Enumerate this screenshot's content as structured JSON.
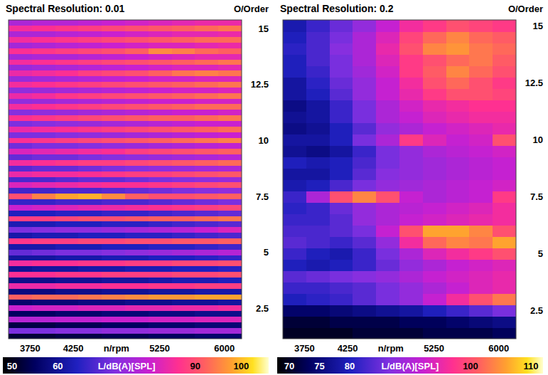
{
  "chart_data": [
    {
      "type": "heatmap",
      "title": "Spectral Resolution: 0.01",
      "y_label": "O/Order",
      "x_label": "n/rpm",
      "x": [
        3635,
        3905,
        4175,
        4445,
        4715,
        4985,
        5255,
        5525,
        5795,
        6065
      ],
      "y": [
        1.25,
        1.5,
        1.75,
        2.0,
        2.25,
        2.5,
        2.75,
        3.0,
        3.25,
        3.5,
        3.75,
        4.0,
        4.25,
        4.5,
        4.75,
        5.0,
        5.25,
        5.5,
        5.75,
        6.0,
        6.25,
        6.5,
        6.75,
        7.0,
        7.25,
        7.5,
        7.75,
        8.0,
        8.25,
        8.5,
        8.75,
        9.0,
        9.25,
        9.5,
        9.75,
        10.0,
        10.25,
        10.5,
        10.75,
        11.0,
        11.25,
        11.5,
        11.75,
        12.0,
        12.25,
        12.5,
        12.75,
        13.0,
        13.25,
        13.5,
        13.75,
        14.0,
        14.25,
        14.5,
        14.75,
        15.0,
        15.25
      ],
      "values": [
        [
          52,
          52,
          53,
          53,
          54,
          54,
          55,
          55,
          56,
          56
        ],
        [
          72,
          72,
          73,
          73,
          74,
          74,
          75,
          75,
          76,
          76
        ],
        [
          53,
          53,
          54,
          54,
          55,
          55,
          56,
          56,
          57,
          57
        ],
        [
          78,
          78,
          79,
          79,
          80,
          80,
          81,
          81,
          82,
          82
        ],
        [
          55,
          55,
          56,
          56,
          57,
          57,
          58,
          58,
          59,
          59
        ],
        [
          80,
          81,
          81,
          82,
          82,
          83,
          83,
          84,
          84,
          85
        ],
        [
          56,
          57,
          57,
          58,
          58,
          59,
          59,
          60,
          60,
          61
        ],
        [
          92,
          93,
          93,
          94,
          95,
          96,
          97,
          97,
          98,
          98
        ],
        [
          58,
          58,
          59,
          59,
          60,
          60,
          61,
          61,
          62,
          62
        ],
        [
          84,
          84,
          85,
          85,
          86,
          86,
          87,
          87,
          88,
          88
        ],
        [
          59,
          59,
          60,
          60,
          61,
          61,
          62,
          63,
          63,
          64
        ],
        [
          86,
          86,
          87,
          87,
          88,
          88,
          88,
          89,
          89,
          90
        ],
        [
          60,
          61,
          61,
          62,
          62,
          63,
          63,
          64,
          64,
          65
        ],
        [
          85,
          86,
          86,
          87,
          87,
          88,
          88,
          89,
          89,
          90
        ],
        [
          61,
          61,
          62,
          62,
          63,
          63,
          64,
          64,
          65,
          66
        ],
        [
          70,
          71,
          72,
          72,
          73,
          74,
          75,
          76,
          77,
          78
        ],
        [
          62,
          62,
          63,
          63,
          64,
          64,
          65,
          65,
          66,
          67
        ],
        [
          87,
          88,
          88,
          89,
          89,
          90,
          90,
          91,
          91,
          92
        ],
        [
          62,
          63,
          63,
          64,
          64,
          65,
          65,
          66,
          67,
          68
        ],
        [
          72,
          73,
          74,
          74,
          75,
          76,
          77,
          78,
          80,
          82
        ],
        [
          63,
          63,
          64,
          64,
          65,
          65,
          66,
          67,
          68,
          69
        ],
        [
          88,
          88,
          89,
          90,
          90,
          91,
          92,
          92,
          93,
          94
        ],
        [
          64,
          64,
          65,
          65,
          66,
          66,
          67,
          68,
          69,
          70
        ],
        [
          80,
          81,
          82,
          83,
          84,
          85,
          86,
          87,
          88,
          89
        ],
        [
          66,
          66,
          67,
          67,
          68,
          68,
          69,
          70,
          71,
          72
        ],
        [
          90,
          95,
          98,
          99,
          96,
          92,
          90,
          90,
          91,
          92
        ],
        [
          67,
          67,
          68,
          68,
          69,
          70,
          71,
          72,
          73,
          74
        ],
        [
          82,
          83,
          84,
          85,
          86,
          86,
          87,
          88,
          89,
          90
        ],
        [
          68,
          68,
          69,
          70,
          70,
          71,
          72,
          73,
          74,
          75
        ],
        [
          84,
          85,
          85,
          86,
          87,
          88,
          88,
          89,
          90,
          91
        ],
        [
          69,
          70,
          70,
          71,
          72,
          73,
          74,
          75,
          76,
          77
        ],
        [
          85,
          86,
          87,
          88,
          88,
          89,
          90,
          91,
          92,
          93
        ],
        [
          70,
          71,
          71,
          72,
          73,
          74,
          75,
          76,
          77,
          78
        ],
        [
          82,
          83,
          84,
          85,
          86,
          88,
          89,
          90,
          91,
          92
        ],
        [
          71,
          72,
          72,
          73,
          74,
          75,
          76,
          77,
          78,
          79
        ],
        [
          86,
          87,
          88,
          89,
          90,
          91,
          92,
          93,
          94,
          95
        ],
        [
          72,
          72,
          73,
          74,
          75,
          76,
          77,
          78,
          79,
          80
        ],
        [
          84,
          85,
          86,
          87,
          88,
          89,
          90,
          91,
          92,
          93
        ],
        [
          72,
          73,
          74,
          75,
          76,
          77,
          78,
          79,
          80,
          80
        ],
        [
          86,
          87,
          88,
          89,
          90,
          91,
          92,
          92,
          93,
          94
        ],
        [
          73,
          74,
          75,
          76,
          77,
          78,
          79,
          80,
          80,
          81
        ],
        [
          85,
          86,
          87,
          88,
          89,
          90,
          91,
          92,
          93,
          93
        ],
        [
          74,
          75,
          76,
          77,
          78,
          79,
          80,
          80,
          81,
          81
        ],
        [
          84,
          85,
          87,
          88,
          89,
          90,
          91,
          92,
          93,
          94
        ],
        [
          74,
          75,
          76,
          77,
          78,
          79,
          80,
          81,
          81,
          82
        ],
        [
          85,
          86,
          87,
          88,
          89,
          90,
          91,
          92,
          93,
          94
        ],
        [
          75,
          76,
          77,
          78,
          79,
          80,
          81,
          81,
          82,
          82
        ],
        [
          84,
          85,
          86,
          88,
          89,
          90,
          92,
          94,
          95,
          94
        ],
        [
          75,
          76,
          77,
          78,
          79,
          80,
          81,
          82,
          82,
          83
        ],
        [
          85,
          86,
          87,
          88,
          89,
          90,
          91,
          92,
          93,
          94
        ],
        [
          76,
          77,
          77,
          78,
          79,
          80,
          81,
          82,
          83,
          83
        ],
        [
          86,
          87,
          88,
          89,
          90,
          92,
          96,
          95,
          93,
          92
        ],
        [
          76,
          77,
          78,
          79,
          80,
          81,
          82,
          82,
          83,
          84
        ],
        [
          85,
          86,
          87,
          88,
          89,
          90,
          91,
          92,
          93,
          93
        ],
        [
          77,
          77,
          78,
          79,
          80,
          81,
          82,
          83,
          83,
          84
        ],
        [
          85,
          86,
          87,
          88,
          89,
          90,
          91,
          92,
          93,
          94
        ],
        [
          77,
          78,
          78,
          79,
          80,
          81,
          82,
          83,
          84,
          84
        ]
      ],
      "xlim": [
        3500,
        6200
      ],
      "ylim": [
        1.125,
        15.375
      ],
      "xticks": [
        3750,
        4250,
        5250,
        6000
      ],
      "yticks": [
        2.5,
        5,
        7.5,
        10,
        12.5,
        15
      ],
      "color_label": "L/dB(A)[SPL]",
      "color_range": [
        48,
        106
      ],
      "color_ticks": [
        50,
        60,
        90,
        100
      ]
    },
    {
      "type": "heatmap",
      "title": "Spectral Resolution: 0.2",
      "y_label": "O/Order",
      "x_label": "n/rpm",
      "x": [
        3635,
        3905,
        4175,
        4445,
        4715,
        4985,
        5255,
        5525,
        5795,
        6065
      ],
      "y": [
        1.5,
        2.0,
        2.5,
        3.0,
        3.5,
        4.0,
        4.5,
        5.0,
        5.5,
        6.0,
        6.5,
        7.0,
        7.5,
        8.0,
        8.5,
        9.0,
        9.5,
        10.0,
        10.5,
        11.0,
        11.5,
        12.0,
        12.5,
        13.0,
        13.5,
        14.0,
        14.5,
        15.0
      ],
      "values": [
        [
          70,
          70,
          70,
          71,
          71,
          71,
          72,
          72,
          72,
          73
        ],
        [
          71,
          71,
          72,
          72,
          72,
          73,
          73,
          74,
          75,
          76
        ],
        [
          74,
          74,
          75,
          76,
          77,
          78,
          80,
          82,
          84,
          86
        ],
        [
          80,
          81,
          82,
          84,
          86,
          88,
          92,
          96,
          100,
          103
        ],
        [
          82,
          82,
          83,
          84,
          86,
          88,
          90,
          92,
          94,
          95
        ],
        [
          84,
          85,
          86,
          87,
          88,
          90,
          92,
          93,
          94,
          95
        ],
        [
          80,
          79,
          80,
          82,
          85,
          88,
          90,
          92,
          93,
          94
        ],
        [
          82,
          80,
          79,
          82,
          86,
          90,
          94,
          96,
          98,
          100
        ],
        [
          84,
          83,
          82,
          84,
          88,
          96,
          102,
          104,
          103,
          106
        ],
        [
          83,
          83,
          84,
          86,
          92,
          100,
          106,
          106,
          104,
          100
        ],
        [
          82,
          82,
          84,
          88,
          90,
          92,
          93,
          94,
          95,
          96
        ],
        [
          81,
          82,
          85,
          88,
          90,
          91,
          92,
          93,
          94,
          96
        ],
        [
          82,
          90,
          100,
          104,
          100,
          92,
          90,
          91,
          92,
          98
        ],
        [
          79,
          80,
          83,
          86,
          88,
          89,
          90,
          91,
          92,
          93
        ],
        [
          78,
          78,
          80,
          84,
          87,
          88,
          89,
          90,
          91,
          92
        ],
        [
          80,
          79,
          80,
          83,
          86,
          88,
          89,
          90,
          91,
          92
        ],
        [
          77,
          76,
          78,
          82,
          86,
          88,
          90,
          91,
          92,
          93
        ],
        [
          78,
          78,
          80,
          86,
          90,
          98,
          94,
          92,
          93,
          100
        ],
        [
          76,
          77,
          80,
          84,
          88,
          90,
          92,
          93,
          94,
          95
        ],
        [
          77,
          78,
          82,
          86,
          90,
          92,
          94,
          95,
          96,
          96
        ],
        [
          76,
          78,
          82,
          86,
          90,
          93,
          95,
          96,
          97,
          97
        ],
        [
          78,
          80,
          84,
          88,
          92,
          95,
          98,
          100,
          100,
          99
        ],
        [
          78,
          81,
          85,
          88,
          92,
          96,
          100,
          102,
          100,
          98
        ],
        [
          80,
          82,
          86,
          89,
          93,
          98,
          101,
          104,
          102,
          100
        ],
        [
          80,
          83,
          86,
          90,
          94,
          98,
          100,
          102,
          103,
          101
        ],
        [
          81,
          83,
          87,
          90,
          95,
          100,
          104,
          105,
          103,
          102
        ],
        [
          80,
          83,
          86,
          90,
          94,
          99,
          102,
          104,
          102,
          101
        ],
        [
          79,
          82,
          85,
          88,
          92,
          96,
          98,
          100,
          99,
          98
        ]
      ],
      "xlim": [
        3500,
        6200
      ],
      "ylim": [
        1.25,
        15.25
      ],
      "xticks": [
        3750,
        4250,
        5250,
        6000
      ],
      "yticks": [
        2.5,
        5,
        7.5,
        10,
        12.5,
        15
      ],
      "color_label": "L/dB(A)[SPL]",
      "color_range": [
        68,
        112
      ],
      "color_ticks": [
        70,
        75,
        80,
        100,
        110
      ]
    }
  ]
}
